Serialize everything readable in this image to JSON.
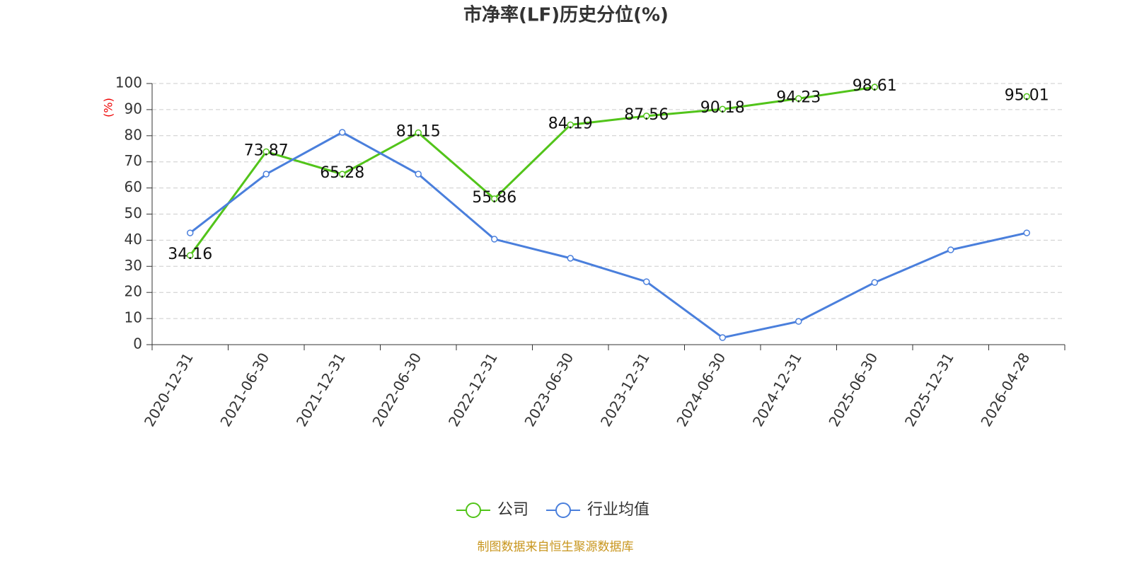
{
  "chart_data": {
    "type": "line",
    "title": "市净率(LF)历史分位(%)",
    "y_label": "(%)",
    "source": "制图数据来自恒生聚源数据库",
    "categories": [
      "2020-12-31",
      "2021-06-30",
      "2021-12-31",
      "2022-06-30",
      "2022-12-31",
      "2023-06-30",
      "2023-12-31",
      "2024-06-30",
      "2024-12-31",
      "2025-06-30",
      "2025-12-31",
      "2026-04-28"
    ],
    "series": [
      {
        "name": "公司",
        "color": "#52c41a",
        "data_labels": true,
        "values": [
          34.16,
          73.87,
          65.28,
          81.15,
          55.86,
          84.19,
          87.56,
          90.18,
          94.23,
          98.61,
          null,
          95.01
        ]
      },
      {
        "name": "行业均值",
        "color": "#4a7fdc",
        "data_labels": false,
        "values": [
          42.8,
          65.3,
          81.3,
          65.3,
          40.4,
          33.1,
          24.1,
          2.7,
          8.9,
          23.8,
          36.3,
          42.8
        ]
      }
    ],
    "ylim": [
      0,
      100
    ],
    "yticks": [
      0,
      10,
      20,
      30,
      40,
      50,
      60,
      70,
      80,
      90,
      100
    ],
    "grid": true
  }
}
